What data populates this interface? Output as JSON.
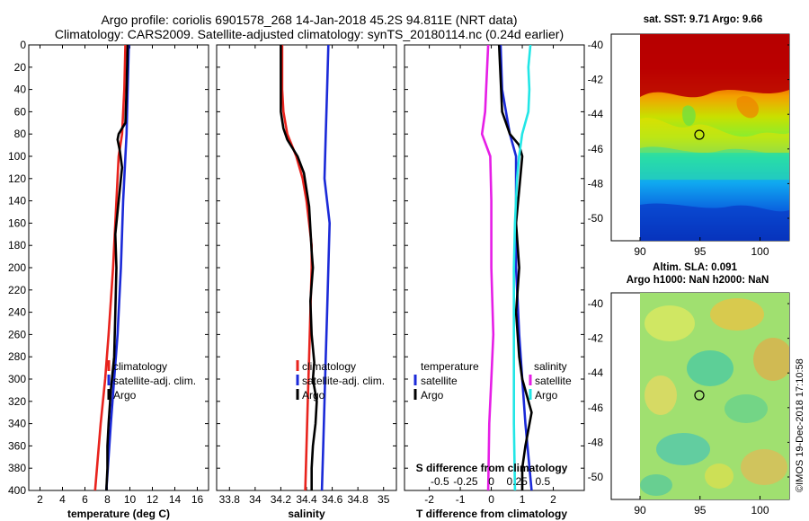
{
  "title": {
    "line1": "Argo profile: coriolis 6901578_268 14-Jan-2018 45.2S 94.811E (NRT data)",
    "line2": "Climatology: CARS2009. Satellite-adjusted climatology: synTS_20180114.nc (0.24d earlier)"
  },
  "colors": {
    "climatology": "#e8231d",
    "satellite": "#1b2ad8",
    "argo": "#000000",
    "magenta": "#e61ee6",
    "cyan": "#22e6e6"
  },
  "chart_data": [
    {
      "type": "line",
      "panel": "temperature",
      "xlabel": "temperature (deg C)",
      "ylabel": "",
      "xlim": [
        1,
        17
      ],
      "ylim": [
        400,
        0
      ],
      "xticks": [
        "2",
        "4",
        "6",
        "8",
        "10",
        "12",
        "14",
        "16"
      ],
      "yticks": [
        "0",
        "20",
        "40",
        "60",
        "80",
        "100",
        "120",
        "140",
        "160",
        "180",
        "200",
        "220",
        "240",
        "260",
        "280",
        "300",
        "320",
        "340",
        "360",
        "380",
        "400"
      ],
      "legend": [
        "climatology",
        "satellite-adj. clim.",
        "Argo"
      ],
      "series": [
        {
          "name": "climatology",
          "color": "#e8231d",
          "depth": [
            0,
            40,
            80,
            100,
            140,
            200,
            260,
            300,
            340,
            400
          ],
          "values": [
            9.6,
            9.5,
            9.3,
            9.0,
            8.8,
            8.5,
            8.1,
            7.8,
            7.4,
            6.9
          ]
        },
        {
          "name": "satellite-adj. clim.",
          "color": "#1b2ad8",
          "depth": [
            0,
            40,
            80,
            100,
            140,
            200,
            260,
            300,
            340,
            400
          ],
          "values": [
            9.9,
            9.8,
            9.7,
            9.6,
            9.4,
            9.2,
            8.9,
            8.6,
            8.3,
            7.9
          ]
        },
        {
          "name": "Argo",
          "color": "#000000",
          "depth": [
            0,
            40,
            70,
            80,
            85,
            95,
            110,
            140,
            170,
            200,
            240,
            280,
            310,
            340,
            360,
            380,
            400
          ],
          "values": [
            9.8,
            9.7,
            9.6,
            9.0,
            8.9,
            9.1,
            9.3,
            9.0,
            8.7,
            8.8,
            8.7,
            8.6,
            8.3,
            8.1,
            8.0,
            8.0,
            7.9
          ]
        }
      ]
    },
    {
      "type": "line",
      "panel": "salinity",
      "xlabel": "salinity",
      "xlim": [
        33.7,
        35.1
      ],
      "ylim": [
        400,
        0
      ],
      "xticks": [
        "33.8",
        "34",
        "34.2",
        "34.4",
        "34.6",
        "34.8",
        "35"
      ],
      "legend": [
        "climatology",
        "satellite-adj. clim.",
        "Argo"
      ],
      "series": [
        {
          "name": "climatology",
          "color": "#e8231d",
          "depth": [
            0,
            40,
            60,
            80,
            100,
            120,
            140,
            160,
            180,
            200,
            240,
            280,
            320,
            360,
            400
          ],
          "values": [
            34.21,
            34.21,
            34.22,
            34.25,
            34.32,
            34.37,
            34.4,
            34.42,
            34.44,
            34.44,
            34.43,
            34.42,
            34.41,
            34.4,
            34.39
          ]
        },
        {
          "name": "satellite-adj. clim.",
          "color": "#1b2ad8",
          "depth": [
            0,
            40,
            80,
            120,
            160,
            200,
            240,
            280,
            320,
            360,
            400
          ],
          "values": [
            34.57,
            34.56,
            34.55,
            34.54,
            34.58,
            34.57,
            34.56,
            34.55,
            34.54,
            34.53,
            34.52
          ]
        },
        {
          "name": "Argo",
          "color": "#000000",
          "depth": [
            0,
            40,
            60,
            75,
            85,
            100,
            115,
            130,
            145,
            165,
            185,
            200,
            230,
            260,
            285,
            300,
            320,
            340,
            360,
            380,
            400
          ],
          "values": [
            34.2,
            34.2,
            34.2,
            34.22,
            34.25,
            34.33,
            34.38,
            34.4,
            34.42,
            34.43,
            34.44,
            34.45,
            34.43,
            34.44,
            34.46,
            34.45,
            34.48,
            34.47,
            34.45,
            34.44,
            34.44
          ]
        }
      ]
    },
    {
      "type": "line",
      "panel": "difference",
      "xlabel": "T difference from climatology",
      "xlabel_top": "S difference from climatology",
      "xlim": [
        -2.8,
        3.0
      ],
      "ylim": [
        400,
        0
      ],
      "xticks": [
        "-2",
        "-1",
        "0",
        "1",
        "2"
      ],
      "xticks_top": [
        "-0.5",
        "-0.25",
        "0",
        "0.25",
        "0.5"
      ],
      "legend_left_title": "temperature",
      "legend_left": [
        "satellite",
        "Argo"
      ],
      "legend_right_title": "salinity",
      "legend_right": [
        "satellite",
        "Argo"
      ],
      "series": [
        {
          "name": "temperature satellite",
          "color": "#1b2ad8",
          "depth": [
            0,
            40,
            80,
            100,
            140,
            200,
            260,
            300,
            340,
            400
          ],
          "values": [
            0.3,
            0.35,
            0.6,
            0.8,
            0.8,
            0.8,
            0.9,
            1.0,
            1.1,
            1.3
          ]
        },
        {
          "name": "temperature Argo",
          "color": "#000000",
          "depth": [
            0,
            30,
            60,
            80,
            90,
            100,
            130,
            160,
            200,
            240,
            280,
            300,
            330,
            360,
            380,
            400
          ],
          "values": [
            0.25,
            0.3,
            0.35,
            0.6,
            0.9,
            1.0,
            0.9,
            0.8,
            0.9,
            0.8,
            0.9,
            1.0,
            1.3,
            1.1,
            1.0,
            1.0
          ]
        },
        {
          "name": "salinity satellite",
          "color": "#e61ee6",
          "depth": [
            0,
            40,
            60,
            80,
            100,
            140,
            200,
            260,
            300,
            340,
            400
          ],
          "values": [
            -0.03,
            -0.05,
            -0.06,
            -0.09,
            -0.01,
            0.0,
            0.0,
            0.02,
            0.0,
            -0.02,
            -0.03
          ]
        },
        {
          "name": "salinity Argo",
          "color": "#22e6e6",
          "depth": [
            0,
            20,
            40,
            60,
            80,
            100,
            120,
            160,
            200,
            260,
            300,
            340,
            400
          ],
          "values": [
            0.38,
            0.36,
            0.37,
            0.36,
            0.3,
            0.27,
            0.25,
            0.23,
            0.22,
            0.22,
            0.22,
            0.22,
            0.23
          ]
        }
      ]
    }
  ],
  "maps": {
    "sst": {
      "title": "sat. SST: 9.71 Argo: 9.66",
      "yticks": [
        "-40",
        "-42",
        "-44",
        "-46",
        "-48",
        "-50"
      ],
      "xticks": [
        "90",
        "95",
        "100"
      ]
    },
    "sla": {
      "title1": "Altim. SLA: 0.091",
      "title2": "Argo h1000: NaN h2000: NaN",
      "yticks": [
        "-40",
        "-42",
        "-44",
        "-46",
        "-48",
        "-50"
      ],
      "xticks": [
        "90",
        "95",
        "100"
      ]
    }
  },
  "watermark": "©IMOS 19-Dec-2018 17:10:58"
}
